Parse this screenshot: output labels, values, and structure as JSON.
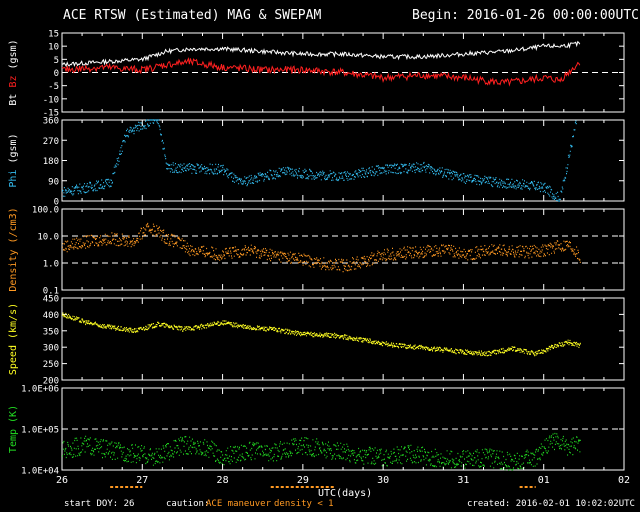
{
  "header": {
    "title": "ACE RTSW (Estimated) MAG & SWEPAM",
    "begin": "Begin: 2016-01-26 00:00:00UTC"
  },
  "footer": {
    "start_doy": "start DOY: 26",
    "caution_label": "caution:",
    "maneuver_label": "ACE maneuver",
    "density_label": "density < 1",
    "created": "created: 2016-02-01 10:02:02UTC",
    "xlabel": "UTC(days)"
  },
  "colors": {
    "bt": "#ffffff",
    "bz": "#ff2020",
    "phi": "#33bbee",
    "density": "#ff9922",
    "speed": "#ffff22",
    "temp": "#22dd22",
    "frame": "#ffffff",
    "caution": "#ff9922"
  },
  "chart_data": [
    {
      "type": "line",
      "name": "mag",
      "ylabel_parts": [
        "Bt",
        "Bz",
        "(gsm)"
      ],
      "ylim": [
        -15,
        15
      ],
      "yticks": [
        "15",
        "10",
        "5",
        "0",
        "-5",
        "-10",
        "-15"
      ],
      "ytick_values": [
        15,
        10,
        5,
        0,
        -5,
        -10,
        -15
      ],
      "dashed_lines": [
        0
      ],
      "x": [
        26.0,
        26.5,
        27.0,
        27.3,
        27.6,
        28.0,
        28.5,
        29.0,
        29.5,
        30.0,
        30.5,
        31.0,
        31.5,
        31.8,
        32.0,
        32.2,
        32.45
      ],
      "series": [
        {
          "name": "Bt",
          "values": [
            3,
            4,
            5,
            8,
            9,
            9,
            8,
            7,
            7,
            6,
            6,
            7,
            8,
            9,
            10,
            10,
            11
          ]
        },
        {
          "name": "Bz",
          "values": [
            1,
            2,
            1,
            3,
            4,
            2,
            1,
            1,
            0,
            -2,
            -1,
            -2,
            -4,
            -3,
            -2,
            -3,
            4
          ]
        }
      ]
    },
    {
      "type": "scatter",
      "name": "phi",
      "ylabel_parts": [
        "Phi",
        "(gsm)"
      ],
      "ylim": [
        0,
        360
      ],
      "yticks": [
        "360",
        "270",
        "180",
        "90",
        "0"
      ],
      "ytick_values": [
        360,
        270,
        180,
        90,
        0
      ],
      "x": [
        26.0,
        26.3,
        26.6,
        26.8,
        27.0,
        27.2,
        27.3,
        27.6,
        28.0,
        28.2,
        28.5,
        28.8,
        29.0,
        29.5,
        30.0,
        30.5,
        30.8,
        31.0,
        31.5,
        31.8,
        32.0,
        32.2,
        32.4
      ],
      "values": [
        40,
        60,
        80,
        300,
        340,
        360,
        150,
        145,
        140,
        80,
        110,
        130,
        120,
        110,
        140,
        150,
        120,
        100,
        80,
        70,
        60,
        10,
        350
      ]
    },
    {
      "type": "scatter",
      "name": "density",
      "ylabel": "Density (/cm3)",
      "scale": "log",
      "ylim": [
        0.1,
        100
      ],
      "yticks": [
        "100.0",
        "10.0",
        "1.0",
        "0.1"
      ],
      "ytick_values": [
        100,
        10,
        1,
        0.1
      ],
      "dashed_lines": [
        10,
        1
      ],
      "x": [
        26.0,
        26.3,
        26.6,
        26.9,
        27.1,
        27.3,
        27.6,
        28.0,
        28.3,
        28.6,
        28.9,
        29.2,
        29.5,
        29.8,
        30.0,
        30.4,
        30.8,
        31.0,
        31.4,
        31.8,
        32.0,
        32.3,
        32.45
      ],
      "values": [
        4,
        6,
        8,
        6,
        20,
        8,
        3,
        2,
        3,
        2,
        1.5,
        1,
        0.8,
        1.2,
        2,
        2.5,
        3,
        2,
        3,
        2.5,
        3,
        5,
        1.5
      ]
    },
    {
      "type": "scatter",
      "name": "speed",
      "ylabel": "Speed (km/s)",
      "ylim": [
        200,
        450
      ],
      "yticks": [
        "450",
        "400",
        "350",
        "300",
        "250",
        "200"
      ],
      "ytick_values": [
        450,
        400,
        350,
        300,
        250,
        200
      ],
      "x": [
        26.0,
        26.3,
        26.6,
        26.9,
        27.2,
        27.5,
        27.8,
        28.0,
        28.3,
        28.6,
        29.0,
        29.4,
        29.8,
        30.0,
        30.4,
        30.8,
        31.0,
        31.3,
        31.6,
        31.9,
        32.1,
        32.3,
        32.45
      ],
      "values": [
        400,
        375,
        360,
        350,
        370,
        355,
        365,
        375,
        360,
        355,
        340,
        335,
        320,
        310,
        300,
        290,
        285,
        280,
        295,
        280,
        300,
        315,
        305
      ]
    },
    {
      "type": "scatter",
      "name": "temp",
      "ylabel": "Temp (K)",
      "scale": "log",
      "ylim": [
        10000,
        1000000
      ],
      "yticks": [
        "1.0E+06",
        "1.0E+05",
        "1.0E+04"
      ],
      "ytick_values": [
        1000000,
        100000,
        10000
      ],
      "dashed_lines": [
        100000
      ],
      "xticks": [
        "26",
        "27",
        "28",
        "29",
        "30",
        "31",
        "01",
        "02"
      ],
      "xtick_values": [
        26,
        27,
        28,
        29,
        30,
        31,
        32,
        33
      ],
      "xlim": [
        26,
        33
      ],
      "x": [
        26.0,
        26.3,
        26.6,
        26.9,
        27.2,
        27.5,
        27.8,
        28.0,
        28.3,
        28.6,
        29.0,
        29.3,
        29.6,
        30.0,
        30.3,
        30.6,
        31.0,
        31.3,
        31.6,
        31.9,
        32.1,
        32.3,
        32.45
      ],
      "values": [
        30000,
        40000,
        30000,
        25000,
        20000,
        40000,
        35000,
        20000,
        30000,
        25000,
        40000,
        30000,
        25000,
        20000,
        25000,
        20000,
        18000,
        20000,
        15000,
        20000,
        50000,
        35000,
        40000
      ]
    }
  ]
}
